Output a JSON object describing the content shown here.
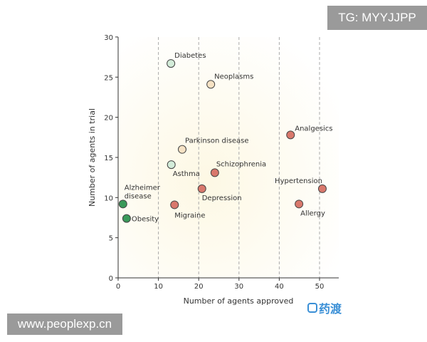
{
  "chart_data": {
    "type": "scatter",
    "xlabel": "Number of agents approved",
    "ylabel": "Number of agents in trial",
    "xlim": [
      0,
      55
    ],
    "ylim": [
      0,
      30
    ],
    "xticks": [
      "0",
      "10",
      "20",
      "30",
      "40",
      "50"
    ],
    "yticks": [
      "0",
      "5",
      "10",
      "15",
      "20",
      "25",
      "30"
    ],
    "grid": "vertical dashed lines at x ticks",
    "points": [
      {
        "label": "Diabetes",
        "x": 13.1,
        "y": 26.7,
        "color": "#d3ecd9"
      },
      {
        "label": "Neoplasms",
        "x": 23,
        "y": 24.1,
        "color": "#f6e2c4"
      },
      {
        "label": "Analgesics",
        "x": 42.8,
        "y": 17.8,
        "color": "#d9786c"
      },
      {
        "label": "Parkinson disease",
        "x": 15.9,
        "y": 16,
        "color": "#f6e2c4"
      },
      {
        "label": "Asthma",
        "x": 13.2,
        "y": 14.1,
        "color": "#d3ecd9"
      },
      {
        "label": "Schizophrenia",
        "x": 24,
        "y": 13.1,
        "color": "#d9786c"
      },
      {
        "label": "Hypertension",
        "x": 50.7,
        "y": 11.1,
        "color": "#d9786c"
      },
      {
        "label": "Depression",
        "x": 20.8,
        "y": 11.1,
        "color": "#d9786c"
      },
      {
        "label": "Alzheimer disease",
        "x": 1.2,
        "y": 9.2,
        "color": "#3a9a5a"
      },
      {
        "label": "Migraine",
        "x": 14,
        "y": 9.1,
        "color": "#d9786c"
      },
      {
        "label": "Allergy",
        "x": 44.9,
        "y": 9.2,
        "color": "#d9786c"
      },
      {
        "label": "Obesity",
        "x": 2.1,
        "y": 7.4,
        "color": "#3a9a5a"
      }
    ]
  },
  "watermarks": {
    "tg": "TG: MYYJJPP",
    "site": "www.peoplexp.cn",
    "logo": "药渡"
  }
}
